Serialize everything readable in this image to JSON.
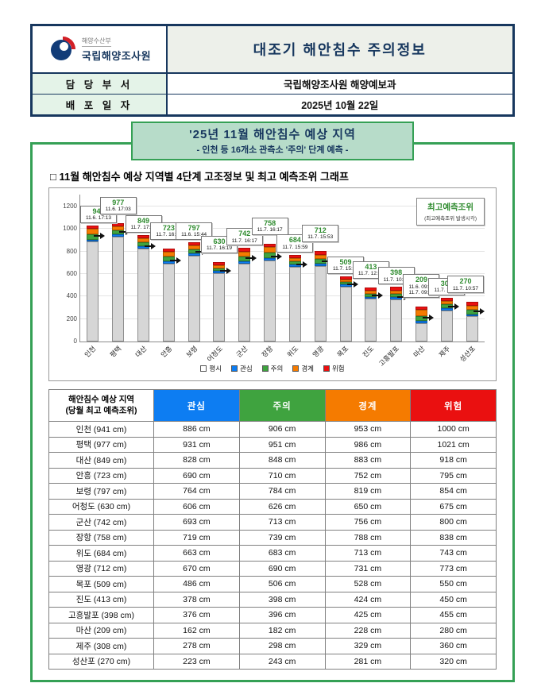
{
  "header": {
    "agency_small": "해양수산부",
    "agency": "국립해양조사원",
    "title": "대조기 해안침수 주의정보",
    "rows": [
      {
        "label": "담 당 부 서",
        "value": "국립해양조사원 해양예보과"
      },
      {
        "label": "배 포 일 자",
        "value": "2025년 10월 22일"
      }
    ]
  },
  "notice": {
    "title": "'25년 11월 해안침수 예상 지역",
    "subtitle": "- 인천 등 16개소 관측소 '주의' 단계 예측 -"
  },
  "section_title": "□ 11월 해안침수 예상 지역별 4단계 고조정보 및 최고 예측조위 그래프",
  "chart_data": {
    "type": "bar",
    "stacked": true,
    "unit": "cm",
    "ylim": [
      0,
      1200
    ],
    "yticks": [
      0,
      200,
      400,
      600,
      800,
      1000,
      1200
    ],
    "over_cap_cm": 30,
    "legend": [
      "평시",
      "관심",
      "주의",
      "경계",
      "위험"
    ],
    "legend_position": "bottom",
    "peak_legend_box": {
      "title": "최고예측조위",
      "subtitle": "(최고예측조위 발생시각)"
    },
    "categories": [
      "인천",
      "평택",
      "대산",
      "안흥",
      "보령",
      "어청도",
      "군산",
      "장항",
      "위도",
      "영광",
      "목포",
      "진도",
      "고흥발포",
      "마산",
      "제주",
      "성산포"
    ],
    "stations": [
      {
        "name": "인천",
        "peak": 941,
        "times": [
          "11.6. 17:13"
        ],
        "levels": [
          886,
          906,
          953,
          1000
        ]
      },
      {
        "name": "평택",
        "peak": 977,
        "times": [
          "11.6. 17:03"
        ],
        "levels": [
          931,
          951,
          986,
          1021
        ]
      },
      {
        "name": "대산",
        "peak": 849,
        "times": [
          "11.7. 17:36"
        ],
        "levels": [
          828,
          848,
          883,
          918
        ]
      },
      {
        "name": "안흥",
        "peak": 723,
        "times": [
          "11.7. 16:58"
        ],
        "levels": [
          690,
          710,
          752,
          795
        ]
      },
      {
        "name": "보령",
        "peak": 797,
        "times": [
          "11.6. 15:44"
        ],
        "levels": [
          764,
          784,
          819,
          854
        ]
      },
      {
        "name": "어청도",
        "peak": 630,
        "times": [
          "11.7. 16:19"
        ],
        "levels": [
          606,
          626,
          650,
          675
        ]
      },
      {
        "name": "군산",
        "peak": 742,
        "times": [
          "11.7. 16:17"
        ],
        "levels": [
          693,
          713,
          756,
          800
        ]
      },
      {
        "name": "장항",
        "peak": 758,
        "times": [
          "11.7. 16:17"
        ],
        "levels": [
          719,
          739,
          788,
          838
        ]
      },
      {
        "name": "위도",
        "peak": 684,
        "times": [
          "11.7. 15:59"
        ],
        "levels": [
          663,
          683,
          713,
          743
        ]
      },
      {
        "name": "영광",
        "peak": 712,
        "times": [
          "11.7. 15:53"
        ],
        "levels": [
          670,
          690,
          731,
          773
        ]
      },
      {
        "name": "목포",
        "peak": 509,
        "times": [
          "11.7. 15:32"
        ],
        "levels": [
          486,
          506,
          528,
          550
        ]
      },
      {
        "name": "진도",
        "peak": 413,
        "times": [
          "11.7. 12:06"
        ],
        "levels": [
          378,
          398,
          424,
          450
        ]
      },
      {
        "name": "고흥발포",
        "peak": 398,
        "times": [
          "11.7. 10:30"
        ],
        "levels": [
          376,
          396,
          425,
          455
        ]
      },
      {
        "name": "마산",
        "peak": 209,
        "times": [
          "11.6. 09:10",
          "11.7. 09:54"
        ],
        "levels": [
          162,
          182,
          228,
          280
        ]
      },
      {
        "name": "제주",
        "peak": 308,
        "times": [
          "11.7. 11:49"
        ],
        "levels": [
          278,
          298,
          329,
          360
        ]
      },
      {
        "name": "성산포",
        "peak": 270,
        "times": [
          "11.7. 10:57"
        ],
        "levels": [
          223,
          243,
          281,
          320
        ]
      }
    ]
  },
  "table": {
    "region_header": "해안침수 예상 지역",
    "region_subheader": "(당월 최고 예측조위)",
    "level_headers": [
      "관심",
      "주의",
      "경계",
      "위험"
    ],
    "unit": "cm"
  },
  "colors": {
    "navy": "#17375e",
    "notice_bg": "#b7dcc9",
    "green_border": "#35a055",
    "peak_green": "#2e8b2e",
    "level_normal": "#d6d6d6",
    "level_interest": "#0d7df2",
    "level_caution": "#3fa33f",
    "level_alert": "#f57b00",
    "level_danger": "#ea1010"
  }
}
